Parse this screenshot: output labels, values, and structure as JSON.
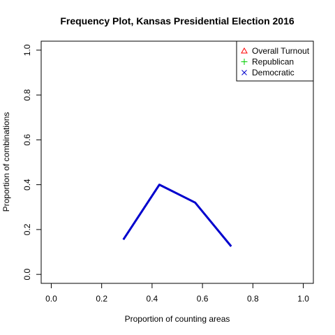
{
  "chart_data": {
    "type": "line",
    "title": "Frequency Plot, Kansas Presidential Election 2016",
    "xlabel": "Proportion of counting areas",
    "ylabel": "Proportion of combinations",
    "xlim": [
      0,
      1
    ],
    "ylim": [
      0,
      1
    ],
    "x_ticks": [
      "0.0",
      "0.2",
      "0.4",
      "0.6",
      "0.8",
      "1.0"
    ],
    "y_ticks": [
      "0.0",
      "0.2",
      "0.4",
      "0.6",
      "0.8",
      "1.0"
    ],
    "grid": false,
    "legend_position": "top-right",
    "legend": [
      {
        "label": "Overall Turnout",
        "symbol": "triangle",
        "color": "#FF0000"
      },
      {
        "label": "Republican",
        "symbol": "plus",
        "color": "#00CD00"
      },
      {
        "label": "Democratic",
        "symbol": "cross",
        "color": "#0000CD"
      }
    ],
    "series": [
      {
        "color": "#0000CD",
        "x": [
          0.286,
          0.429,
          0.571,
          0.714
        ],
        "y": [
          0.155,
          0.4,
          0.32,
          0.125
        ]
      }
    ]
  }
}
